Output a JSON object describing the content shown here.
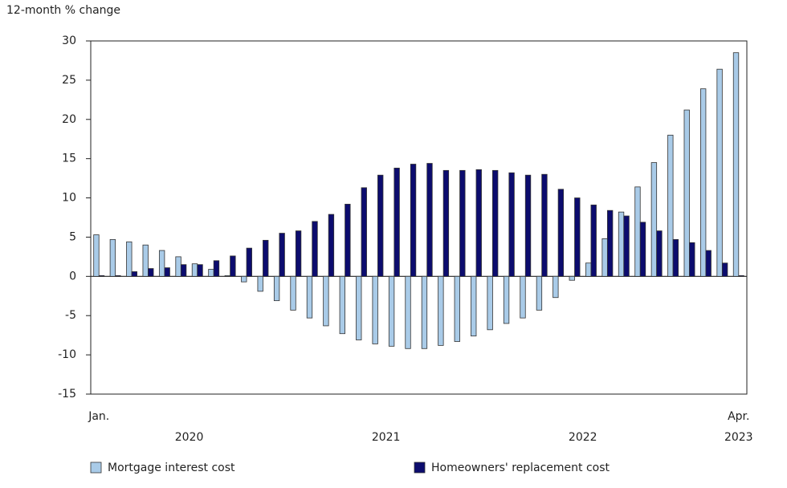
{
  "chart_data": {
    "type": "bar",
    "y_axis_label": "12-month % change",
    "categories": [
      "Jan.",
      null,
      null,
      null,
      null,
      null,
      null,
      null,
      null,
      null,
      null,
      null,
      null,
      null,
      null,
      null,
      null,
      null,
      null,
      null,
      null,
      null,
      null,
      null,
      null,
      null,
      null,
      null,
      null,
      null,
      null,
      null,
      null,
      null,
      null,
      null,
      null,
      null,
      null,
      "Apr."
    ],
    "year_labels": [
      "2020",
      "2021",
      "2022",
      "2023"
    ],
    "series": [
      {
        "name": "Mortgage interest cost",
        "color": "#a9cbe8",
        "values": [
          5.3,
          4.7,
          4.4,
          4.0,
          3.3,
          2.5,
          1.6,
          0.9,
          0.1,
          -0.7,
          -1.9,
          -3.1,
          -4.3,
          -5.3,
          -6.3,
          -7.3,
          -8.1,
          -8.6,
          -8.9,
          -9.2,
          -9.2,
          -8.8,
          -8.3,
          -7.6,
          -6.8,
          -6.0,
          -5.3,
          -4.3,
          -2.7,
          -0.5,
          1.7,
          4.8,
          8.2,
          11.4,
          14.5,
          18.0,
          21.2,
          23.9,
          26.4,
          28.5
        ]
      },
      {
        "name": "Homeowners' replacement cost",
        "color": "#0c0c6e",
        "values": [
          0.1,
          0.1,
          0.6,
          1.0,
          1.1,
          1.5,
          1.5,
          2.0,
          2.6,
          3.6,
          4.6,
          5.5,
          5.8,
          7.0,
          7.9,
          9.2,
          11.3,
          12.9,
          13.8,
          14.3,
          14.4,
          13.5,
          13.5,
          13.6,
          13.5,
          13.2,
          12.9,
          13.0,
          11.1,
          10.0,
          9.1,
          8.4,
          7.7,
          6.9,
          5.8,
          4.7,
          4.3,
          3.3,
          1.7,
          0.1
        ]
      }
    ],
    "ylim": [
      -15,
      30
    ],
    "yticks": [
      -15,
      -10,
      -5,
      0,
      5,
      10,
      15,
      20,
      25,
      30
    ],
    "legend": "bottom"
  }
}
